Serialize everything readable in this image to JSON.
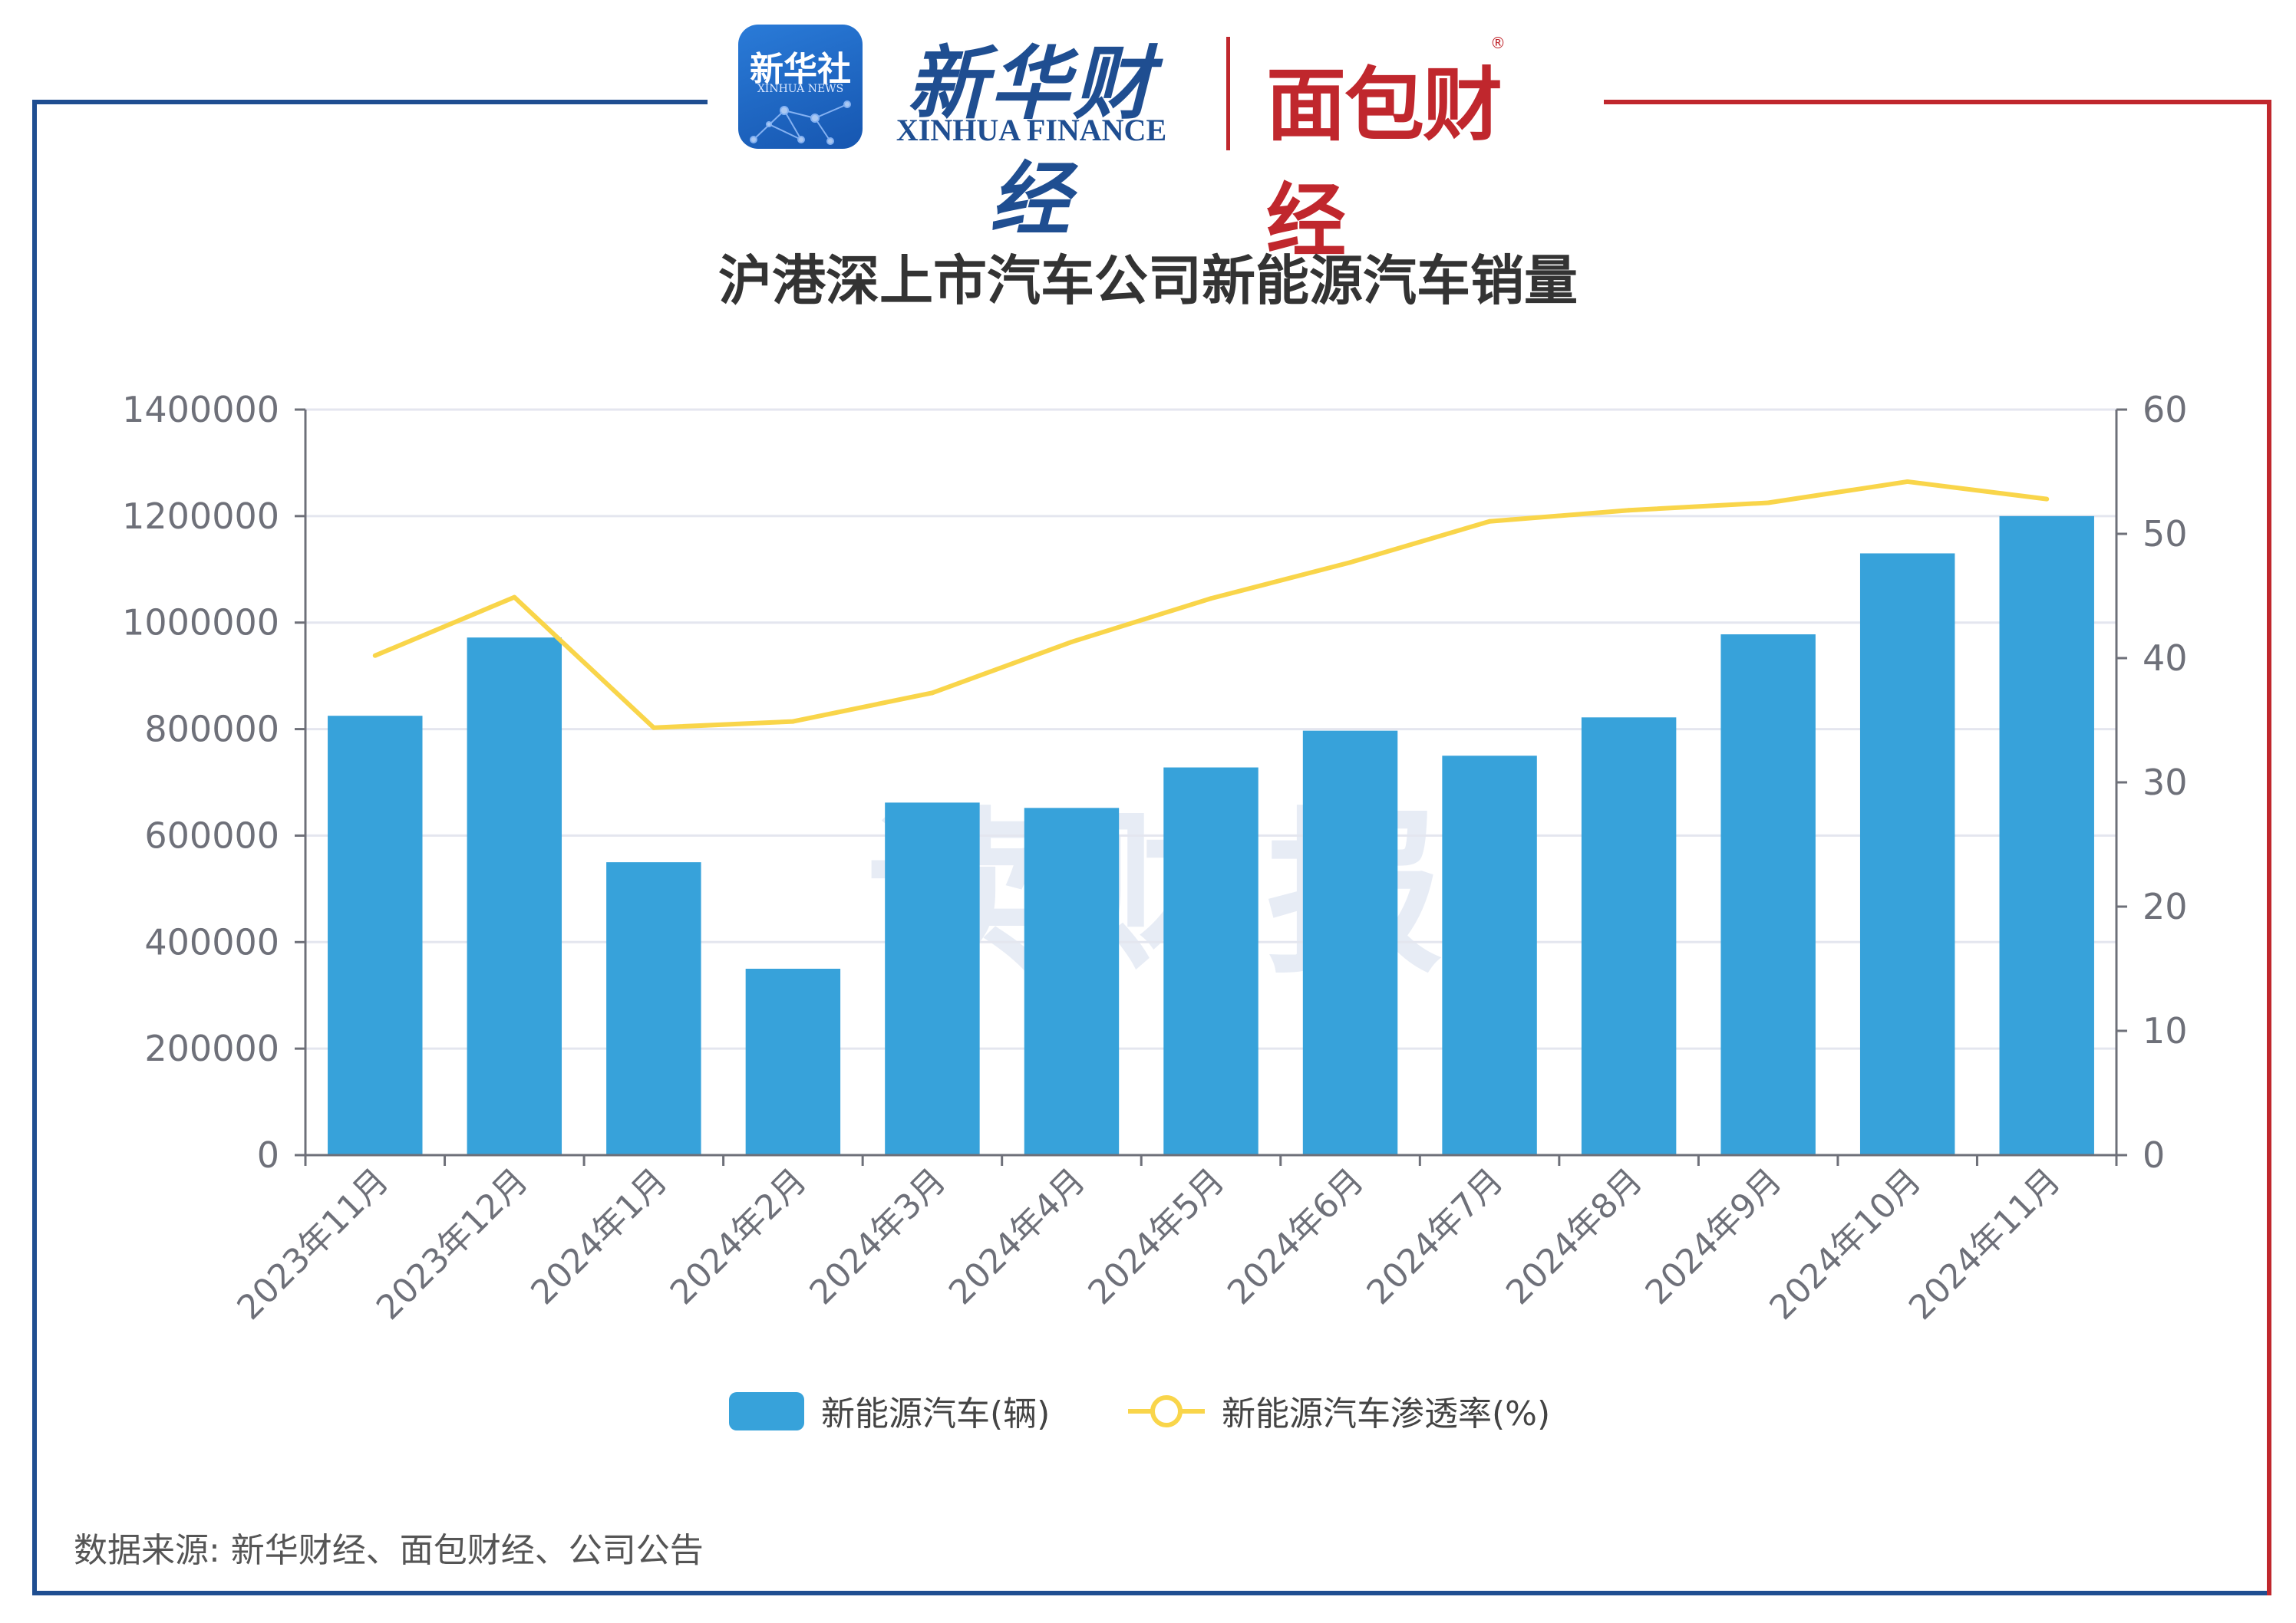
{
  "header": {
    "xinhua_logo_cn": "新华社",
    "xinhua_logo_en": "XINHUA NEWS",
    "finance_logo_cn": "新华财经",
    "finance_logo_en": "XINHUA FINANCE",
    "mianbao_logo_cn": "面包财经",
    "mianbao_logo_reg": "®"
  },
  "watermark": "读财报",
  "source": "数据来源: 新华财经、面包财经、公司公告",
  "colors": {
    "bar": "#37a2da",
    "line": "#f9d54a",
    "frame_left": "#1f4e91",
    "frame_right": "#c0272d"
  },
  "chart_data": {
    "type": "bar",
    "title": "沪港深上市汽车公司新能源汽车销量",
    "categories": [
      "2023年11月",
      "2023年12月",
      "2024年1月",
      "2024年2月",
      "2024年3月",
      "2024年4月",
      "2024年5月",
      "2024年6月",
      "2024年7月",
      "2024年8月",
      "2024年9月",
      "2024年10月",
      "2024年11月"
    ],
    "series": [
      {
        "name": "新能源汽车(辆)",
        "type": "bar",
        "axis": "left",
        "values": [
          825000,
          972000,
          550000,
          350000,
          662000,
          652000,
          728000,
          797000,
          750000,
          822000,
          978000,
          1130000,
          1200000
        ]
      },
      {
        "name": "新能源汽车渗透率(%)",
        "type": "line",
        "axis": "right",
        "values": [
          40.2,
          44.9,
          34.4,
          34.9,
          37.2,
          41.3,
          44.8,
          47.7,
          51.0,
          51.9,
          52.5,
          54.2,
          52.8
        ]
      }
    ],
    "y_left": {
      "ylim": [
        0,
        1400000
      ],
      "ticks": [
        "0",
        "200000",
        "400000",
        "600000",
        "800000",
        "1000000",
        "1200000",
        "1400000"
      ]
    },
    "y_right": {
      "ylim": [
        0,
        60
      ],
      "ticks": [
        "0",
        "10",
        "20",
        "30",
        "40",
        "50",
        "60"
      ]
    },
    "grid": true,
    "legend": "bottom-center"
  }
}
